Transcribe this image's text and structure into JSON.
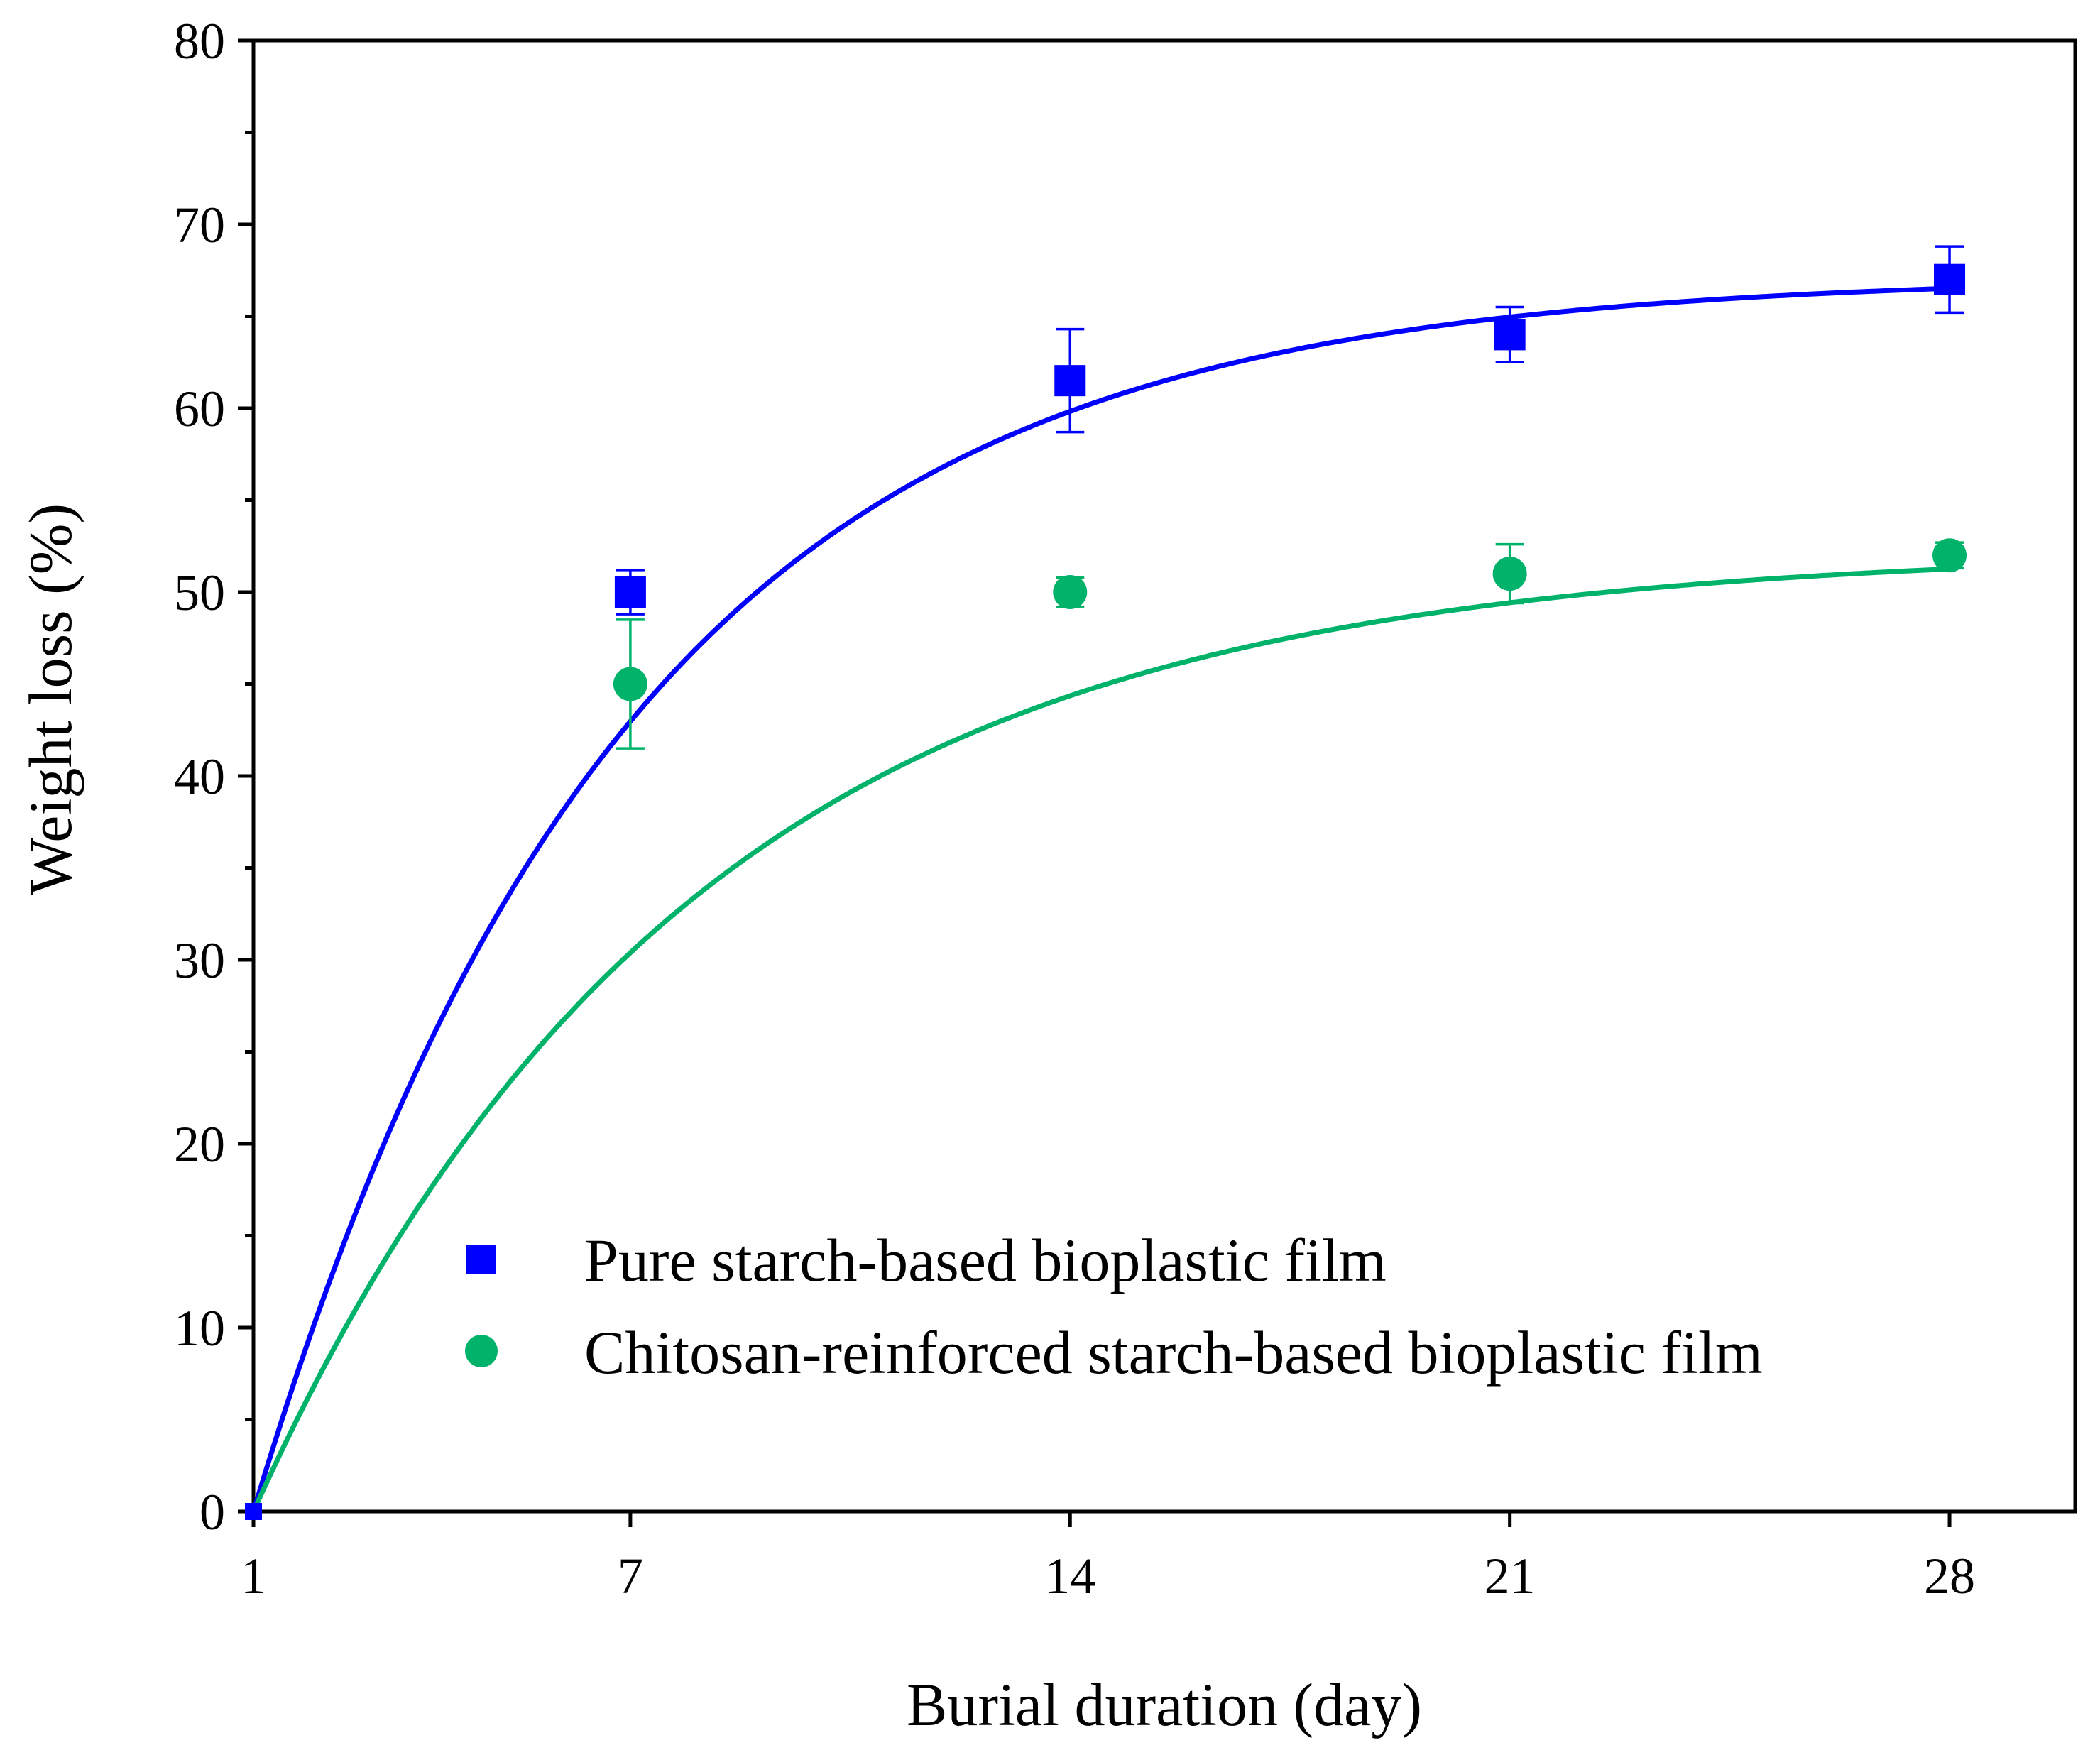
{
  "chart_data": {
    "type": "scatter",
    "title": "",
    "xlabel": "Burial duration (day)",
    "ylabel": "Weight loss (%)",
    "xlim": [
      1,
      30
    ],
    "ylim": [
      0,
      80
    ],
    "x_ticks": [
      1,
      7,
      14,
      21,
      28
    ],
    "x_tick_labels": [
      "1",
      "7",
      "14",
      "21",
      "28"
    ],
    "y_ticks": [
      0,
      10,
      20,
      30,
      40,
      50,
      60,
      70,
      80
    ],
    "y_tick_labels": [
      "0",
      "10",
      "20",
      "30",
      "40",
      "50",
      "60",
      "70",
      "80"
    ],
    "grid": false,
    "legend_position": "bottom-right",
    "series": [
      {
        "name": "Pure starch-based bioplastic film",
        "marker": "square",
        "color": "#0000ff",
        "x": [
          1,
          7,
          14,
          21,
          28
        ],
        "y": [
          0,
          50,
          61.5,
          64,
          67
        ],
        "error": [
          0,
          1.2,
          2.8,
          1.5,
          1.8
        ],
        "fit": {
          "model": "exponential_rise",
          "a": 67.2,
          "k": 0.17
        }
      },
      {
        "name": "Chitosan-reinforced starch-based bioplastic film",
        "marker": "circle",
        "color": "#00b26a",
        "x": [
          1,
          7,
          14,
          21,
          28
        ],
        "y": [
          0,
          45,
          50,
          51,
          52
        ],
        "error": [
          0,
          3.5,
          0.8,
          1.6,
          0.7
        ],
        "fit": {
          "model": "exponential_rise",
          "a": 52.3,
          "k": 0.145
        }
      }
    ]
  }
}
